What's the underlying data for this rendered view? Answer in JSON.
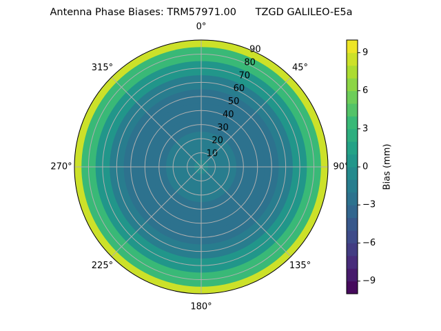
{
  "chart_data": {
    "type": "polar-contour",
    "title": "Antenna Phase Biases: TRM57971.00      TZGD GALILEO-E5a",
    "zenith": [
      0,
      10,
      20,
      30,
      40,
      50,
      60,
      70,
      80,
      90
    ],
    "values": [
      -1,
      -1.5,
      -2,
      -2.5,
      -3,
      -3,
      -2,
      0,
      3,
      8
    ],
    "rlim": [
      0,
      90
    ],
    "rticks": [
      10,
      20,
      30,
      40,
      50,
      60,
      70,
      80,
      90
    ],
    "theta_ticks": [
      {
        "value": 0,
        "label": "0°"
      },
      {
        "value": 45,
        "label": "45°"
      },
      {
        "value": 90,
        "label": "90°"
      },
      {
        "value": 135,
        "label": "135°"
      },
      {
        "value": 180,
        "label": "180°"
      },
      {
        "value": 225,
        "label": "225°"
      },
      {
        "value": 270,
        "label": "270°"
      },
      {
        "value": 315,
        "label": "315°"
      }
    ],
    "colorbar_label": "Bias (mm)",
    "clim": [
      -10,
      10
    ],
    "cticks": [
      {
        "value": -9,
        "label": "−9"
      },
      {
        "value": -6,
        "label": "−6"
      },
      {
        "value": -3,
        "label": "−3"
      },
      0,
      3,
      6,
      9
    ],
    "colormap": "viridis",
    "grid": true
  }
}
